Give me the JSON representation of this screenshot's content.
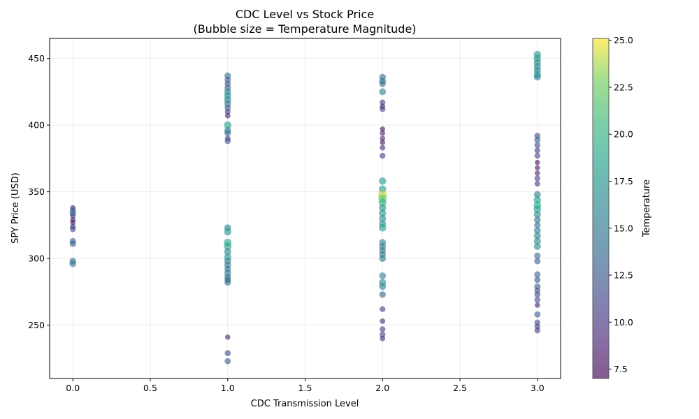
{
  "chart_data": {
    "type": "scatter",
    "title": "CDC Level vs Stock Price",
    "subtitle": "(Bubble size = Temperature Magnitude)",
    "xlabel": "CDC Transmission Level",
    "ylabel": "SPY Price (USD)",
    "xlim": [
      -0.15,
      3.15
    ],
    "ylim": [
      210,
      465
    ],
    "x_ticks": [
      0.0,
      0.5,
      1.0,
      1.5,
      2.0,
      2.5,
      3.0
    ],
    "x_tick_labels": [
      "0.0",
      "0.5",
      "1.0",
      "1.5",
      "2.0",
      "2.5",
      "3.0"
    ],
    "y_ticks": [
      250,
      300,
      350,
      400,
      450
    ],
    "y_tick_labels": [
      "250",
      "300",
      "350",
      "400",
      "450"
    ],
    "grid": true,
    "colorbar": {
      "label": "Temperature",
      "min": 7.0,
      "max": 25.1,
      "ticks": [
        7.5,
        10.0,
        12.5,
        15.0,
        17.5,
        20.0,
        22.5,
        25.0
      ],
      "tick_labels": [
        "7.5",
        "10.0",
        "12.5",
        "15.0",
        "17.5",
        "20.0",
        "22.5",
        "25.0"
      ],
      "colormap": "viridis"
    },
    "points": [
      {
        "x": 0,
        "y": 338,
        "t": 8.5
      },
      {
        "x": 0,
        "y": 336,
        "t": 12.0
      },
      {
        "x": 0,
        "y": 334,
        "t": 14.0
      },
      {
        "x": 0,
        "y": 332,
        "t": 11.0
      },
      {
        "x": 0,
        "y": 329,
        "t": 9.0
      },
      {
        "x": 0,
        "y": 327,
        "t": 8.0
      },
      {
        "x": 0,
        "y": 324,
        "t": 10.0
      },
      {
        "x": 0,
        "y": 322,
        "t": 11.5
      },
      {
        "x": 0,
        "y": 313,
        "t": 13.0
      },
      {
        "x": 0,
        "y": 311,
        "t": 13.5
      },
      {
        "x": 0,
        "y": 298,
        "t": 14.5
      },
      {
        "x": 0,
        "y": 296,
        "t": 15.0
      },
      {
        "x": 1,
        "y": 437,
        "t": 14.0
      },
      {
        "x": 1,
        "y": 434,
        "t": 13.0
      },
      {
        "x": 1,
        "y": 431,
        "t": 12.0
      },
      {
        "x": 1,
        "y": 428,
        "t": 13.5
      },
      {
        "x": 1,
        "y": 425,
        "t": 15.5
      },
      {
        "x": 1,
        "y": 422,
        "t": 17.0
      },
      {
        "x": 1,
        "y": 419,
        "t": 16.5
      },
      {
        "x": 1,
        "y": 416,
        "t": 15.0
      },
      {
        "x": 1,
        "y": 413,
        "t": 12.5
      },
      {
        "x": 1,
        "y": 410,
        "t": 10.5
      },
      {
        "x": 1,
        "y": 407,
        "t": 9.0
      },
      {
        "x": 1,
        "y": 400,
        "t": 18.5
      },
      {
        "x": 1,
        "y": 396,
        "t": 15.0
      },
      {
        "x": 1,
        "y": 394,
        "t": 14.0
      },
      {
        "x": 1,
        "y": 390,
        "t": 10.0
      },
      {
        "x": 1,
        "y": 388,
        "t": 12.0
      },
      {
        "x": 1,
        "y": 323,
        "t": 16.0
      },
      {
        "x": 1,
        "y": 320,
        "t": 17.5
      },
      {
        "x": 1,
        "y": 312,
        "t": 19.0
      },
      {
        "x": 1,
        "y": 309,
        "t": 18.5
      },
      {
        "x": 1,
        "y": 305,
        "t": 16.5
      },
      {
        "x": 1,
        "y": 301,
        "t": 17.5
      },
      {
        "x": 1,
        "y": 298,
        "t": 16.0
      },
      {
        "x": 1,
        "y": 295,
        "t": 15.0
      },
      {
        "x": 1,
        "y": 292,
        "t": 14.0
      },
      {
        "x": 1,
        "y": 289,
        "t": 15.5
      },
      {
        "x": 1,
        "y": 286,
        "t": 14.5
      },
      {
        "x": 1,
        "y": 284,
        "t": 13.5
      },
      {
        "x": 1,
        "y": 282,
        "t": 14.0
      },
      {
        "x": 1,
        "y": 241,
        "t": 8.5
      },
      {
        "x": 1,
        "y": 229,
        "t": 11.5
      },
      {
        "x": 1,
        "y": 223,
        "t": 12.0
      },
      {
        "x": 2,
        "y": 436,
        "t": 14.5
      },
      {
        "x": 2,
        "y": 433,
        "t": 15.5
      },
      {
        "x": 2,
        "y": 431,
        "t": 14.0
      },
      {
        "x": 2,
        "y": 425,
        "t": 16.0
      },
      {
        "x": 2,
        "y": 417,
        "t": 10.5
      },
      {
        "x": 2,
        "y": 414,
        "t": 9.5
      },
      {
        "x": 2,
        "y": 412,
        "t": 11.0
      },
      {
        "x": 2,
        "y": 397,
        "t": 7.5
      },
      {
        "x": 2,
        "y": 394,
        "t": 8.5
      },
      {
        "x": 2,
        "y": 390,
        "t": 9.0
      },
      {
        "x": 2,
        "y": 387,
        "t": 8.0
      },
      {
        "x": 2,
        "y": 383,
        "t": 9.5
      },
      {
        "x": 2,
        "y": 377,
        "t": 11.0
      },
      {
        "x": 2,
        "y": 358,
        "t": 17.5
      },
      {
        "x": 2,
        "y": 352,
        "t": 18.0
      },
      {
        "x": 2,
        "y": 348,
        "t": 24.0
      },
      {
        "x": 2,
        "y": 345,
        "t": 22.0
      },
      {
        "x": 2,
        "y": 342,
        "t": 19.5
      },
      {
        "x": 2,
        "y": 338,
        "t": 17.0
      },
      {
        "x": 2,
        "y": 334,
        "t": 18.0
      },
      {
        "x": 2,
        "y": 330,
        "t": 16.5
      },
      {
        "x": 2,
        "y": 326,
        "t": 17.0
      },
      {
        "x": 2,
        "y": 323,
        "t": 18.5
      },
      {
        "x": 2,
        "y": 312,
        "t": 15.5
      },
      {
        "x": 2,
        "y": 309,
        "t": 16.0
      },
      {
        "x": 2,
        "y": 306,
        "t": 14.5
      },
      {
        "x": 2,
        "y": 303,
        "t": 15.0
      },
      {
        "x": 2,
        "y": 300,
        "t": 16.0
      },
      {
        "x": 2,
        "y": 287,
        "t": 15.5
      },
      {
        "x": 2,
        "y": 282,
        "t": 17.0
      },
      {
        "x": 2,
        "y": 279,
        "t": 16.0
      },
      {
        "x": 2,
        "y": 273,
        "t": 13.5
      },
      {
        "x": 2,
        "y": 262,
        "t": 11.0
      },
      {
        "x": 2,
        "y": 253,
        "t": 9.0
      },
      {
        "x": 2,
        "y": 247,
        "t": 10.5
      },
      {
        "x": 2,
        "y": 243,
        "t": 11.0
      },
      {
        "x": 2,
        "y": 240,
        "t": 9.5
      },
      {
        "x": 3,
        "y": 453,
        "t": 17.5
      },
      {
        "x": 3,
        "y": 450,
        "t": 18.0
      },
      {
        "x": 3,
        "y": 447,
        "t": 16.5
      },
      {
        "x": 3,
        "y": 444,
        "t": 17.0
      },
      {
        "x": 3,
        "y": 441,
        "t": 16.0
      },
      {
        "x": 3,
        "y": 438,
        "t": 17.5
      },
      {
        "x": 3,
        "y": 436,
        "t": 15.5
      },
      {
        "x": 3,
        "y": 392,
        "t": 12.0
      },
      {
        "x": 3,
        "y": 389,
        "t": 13.0
      },
      {
        "x": 3,
        "y": 385,
        "t": 11.5
      },
      {
        "x": 3,
        "y": 381,
        "t": 10.5
      },
      {
        "x": 3,
        "y": 377,
        "t": 11.0
      },
      {
        "x": 3,
        "y": 372,
        "t": 7.5
      },
      {
        "x": 3,
        "y": 368,
        "t": 8.0
      },
      {
        "x": 3,
        "y": 364,
        "t": 9.0
      },
      {
        "x": 3,
        "y": 360,
        "t": 11.0
      },
      {
        "x": 3,
        "y": 356,
        "t": 10.0
      },
      {
        "x": 3,
        "y": 348,
        "t": 15.5
      },
      {
        "x": 3,
        "y": 344,
        "t": 18.0
      },
      {
        "x": 3,
        "y": 340,
        "t": 19.0
      },
      {
        "x": 3,
        "y": 337,
        "t": 18.5
      },
      {
        "x": 3,
        "y": 333,
        "t": 16.5
      },
      {
        "x": 3,
        "y": 329,
        "t": 15.0
      },
      {
        "x": 3,
        "y": 325,
        "t": 14.0
      },
      {
        "x": 3,
        "y": 321,
        "t": 15.5
      },
      {
        "x": 3,
        "y": 317,
        "t": 16.0
      },
      {
        "x": 3,
        "y": 313,
        "t": 17.0
      },
      {
        "x": 3,
        "y": 309,
        "t": 16.0
      },
      {
        "x": 3,
        "y": 302,
        "t": 14.0
      },
      {
        "x": 3,
        "y": 298,
        "t": 13.0
      },
      {
        "x": 3,
        "y": 288,
        "t": 13.5
      },
      {
        "x": 3,
        "y": 284,
        "t": 12.5
      },
      {
        "x": 3,
        "y": 279,
        "t": 13.0
      },
      {
        "x": 3,
        "y": 276,
        "t": 12.0
      },
      {
        "x": 3,
        "y": 273,
        "t": 11.5
      },
      {
        "x": 3,
        "y": 269,
        "t": 12.0
      },
      {
        "x": 3,
        "y": 265,
        "t": 8.5
      },
      {
        "x": 3,
        "y": 258,
        "t": 12.5
      },
      {
        "x": 3,
        "y": 252,
        "t": 11.5
      },
      {
        "x": 3,
        "y": 249,
        "t": 10.5
      },
      {
        "x": 3,
        "y": 246,
        "t": 11.0
      }
    ]
  }
}
